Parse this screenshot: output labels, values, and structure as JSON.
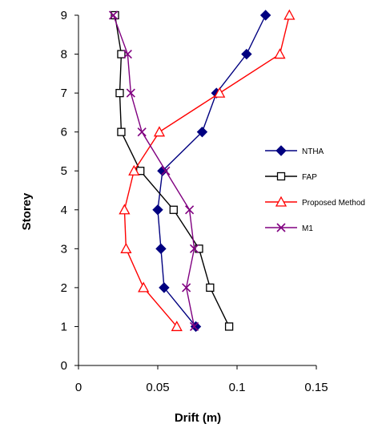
{
  "chart_data": {
    "type": "line",
    "title": "",
    "xlabel": "Drift (m)",
    "ylabel": "Storey",
    "xlim": [
      0,
      0.15
    ],
    "ylim": [
      0,
      9
    ],
    "x_ticks": [
      "0",
      "0.05",
      "0.1",
      "0.15"
    ],
    "y_ticks": [
      "0",
      "1",
      "2",
      "3",
      "4",
      "5",
      "6",
      "7",
      "8",
      "9"
    ],
    "grid": false,
    "legend_position": "right",
    "series": [
      {
        "name": "NTHA",
        "color": "#000080",
        "marker": "diamond-filled",
        "points": [
          {
            "x": 0.074,
            "y": 1
          },
          {
            "x": 0.054,
            "y": 2
          },
          {
            "x": 0.052,
            "y": 3
          },
          {
            "x": 0.05,
            "y": 4
          },
          {
            "x": 0.053,
            "y": 5
          },
          {
            "x": 0.078,
            "y": 6
          },
          {
            "x": 0.087,
            "y": 7
          },
          {
            "x": 0.106,
            "y": 8
          },
          {
            "x": 0.118,
            "y": 9
          }
        ]
      },
      {
        "name": "FAP",
        "color": "#000000",
        "marker": "square-open",
        "points": [
          {
            "x": 0.095,
            "y": 1
          },
          {
            "x": 0.083,
            "y": 2
          },
          {
            "x": 0.076,
            "y": 3
          },
          {
            "x": 0.06,
            "y": 4
          },
          {
            "x": 0.039,
            "y": 5
          },
          {
            "x": 0.027,
            "y": 6
          },
          {
            "x": 0.026,
            "y": 7
          },
          {
            "x": 0.027,
            "y": 8
          },
          {
            "x": 0.023,
            "y": 9
          }
        ]
      },
      {
        "name": "Proposed Method",
        "color": "#ff0000",
        "marker": "triangle-open",
        "points": [
          {
            "x": 0.062,
            "y": 1
          },
          {
            "x": 0.041,
            "y": 2
          },
          {
            "x": 0.03,
            "y": 3
          },
          {
            "x": 0.029,
            "y": 4
          },
          {
            "x": 0.035,
            "y": 5
          },
          {
            "x": 0.051,
            "y": 6
          },
          {
            "x": 0.089,
            "y": 7
          },
          {
            "x": 0.127,
            "y": 8
          },
          {
            "x": 0.133,
            "y": 9
          }
        ]
      },
      {
        "name": "M1",
        "color": "#800080",
        "marker": "x",
        "points": [
          {
            "x": 0.073,
            "y": 1
          },
          {
            "x": 0.068,
            "y": 2
          },
          {
            "x": 0.073,
            "y": 3
          },
          {
            "x": 0.07,
            "y": 4
          },
          {
            "x": 0.055,
            "y": 5
          },
          {
            "x": 0.04,
            "y": 6
          },
          {
            "x": 0.033,
            "y": 7
          },
          {
            "x": 0.031,
            "y": 8
          },
          {
            "x": 0.022,
            "y": 9
          }
        ]
      }
    ]
  }
}
